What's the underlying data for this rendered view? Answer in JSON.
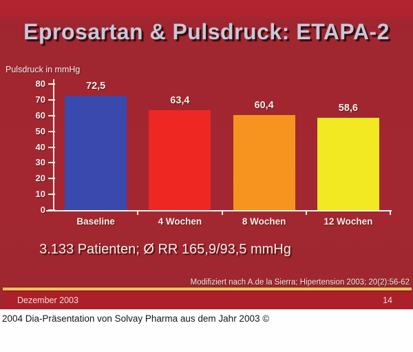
{
  "slide": {
    "title": "Eprosartan & Pulsdruck: ETAPA-2",
    "note": "3.133 Patienten; Ø RR 165,9/93,5 mmHg",
    "citation": "Modifiziert nach A.de la Sierra; Hipertension 2003; 20(2):56-62",
    "footer": {
      "date": "Dezember 2003",
      "page_number": "14"
    }
  },
  "caption": {
    "text": "2004 Dia-Präsentation von Solvay Pharma aus dem Jahr 2003 ©"
  },
  "chart_data": {
    "type": "bar",
    "title": "",
    "xlabel": "",
    "ylabel": "Pulsdruck in mmHg",
    "categories": [
      "Baseline",
      "4 Wochen",
      "8 Wochen",
      "12 Wochen"
    ],
    "values": [
      72.5,
      63.4,
      60.4,
      58.6
    ],
    "value_labels": [
      "72,5",
      "63,4",
      "60,4",
      "58,6"
    ],
    "bar_colors": [
      "#3a49ad",
      "#ee2723",
      "#f6941f",
      "#f3e923"
    ],
    "ylim": [
      0,
      80
    ],
    "yticks": [
      0,
      10,
      20,
      30,
      40,
      50,
      60,
      70,
      80
    ],
    "grid": false,
    "legend": null
  },
  "colors": {
    "slide_background": "#a32731",
    "slide_background_top": "#b2242f",
    "title_text": "#c7c8d7",
    "axis_text": "#f6f1ea",
    "separator_gold": "#f2c766",
    "footer_bar": "#ad2029",
    "footer_text": "#eadfd8",
    "caption_background": "#fefefe",
    "caption_text": "#141414"
  }
}
